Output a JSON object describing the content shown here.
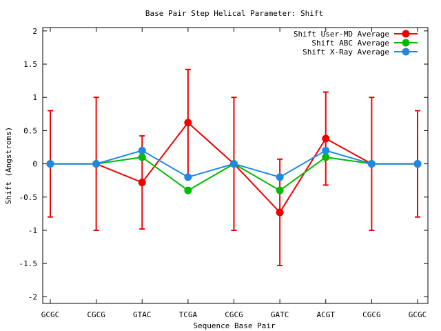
{
  "chart_data": {
    "type": "line",
    "title": "Base Pair Step Helical Parameter: Shift",
    "xlabel": "Sequence Base Pair",
    "ylabel": "Shift (Angstroms)",
    "categories": [
      "GCGC",
      "CGCG",
      "GTAC",
      "TCGA",
      "CGCG",
      "GATC",
      "ACGT",
      "CGCG",
      "GCGC"
    ],
    "ylim": [
      -2.1,
      2.05
    ],
    "yticks": [
      -2,
      -1.5,
      -1,
      -0.5,
      0,
      0.5,
      1,
      1.5,
      2
    ],
    "ytick_labels": [
      "-2",
      "-1.5",
      "-1",
      "-0.5",
      "0",
      "0.5",
      "1",
      "1.5",
      "2"
    ],
    "grid": false,
    "legend_position": "top-right",
    "series": [
      {
        "name": "Shift User-MD Average",
        "color": "#ee0000",
        "values": [
          0,
          0,
          -0.28,
          0.62,
          0,
          -0.73,
          0.38,
          0,
          0
        ],
        "error": [
          0.8,
          1.0,
          0.7,
          0.8,
          1.0,
          0.8,
          0.7,
          1.0,
          0.8
        ]
      },
      {
        "name": "Shift ABC Average",
        "color": "#00bb00",
        "values": [
          0,
          0,
          0.1,
          -0.4,
          0,
          -0.4,
          0.1,
          0,
          0
        ]
      },
      {
        "name": "Shift X-Ray Average",
        "color": "#1e88e5",
        "values": [
          0,
          0,
          0.2,
          -0.2,
          0,
          -0.2,
          0.2,
          0,
          0
        ]
      }
    ]
  }
}
